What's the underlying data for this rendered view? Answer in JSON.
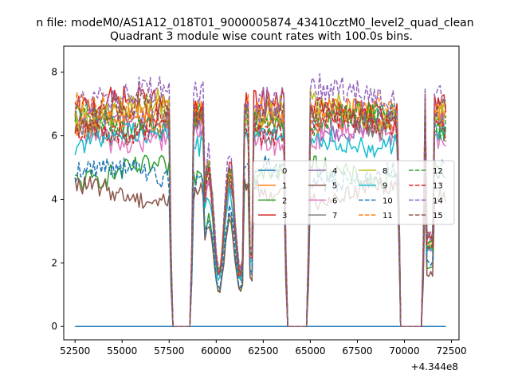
{
  "chart_data": {
    "type": "line",
    "suptitle": "n file: modeM0/AS1A12_018T01_9000005874_43410cztM0_level2_quad_clean",
    "title": "Quadrant 3 module wise count rates with 100.0s bins.",
    "xlabel": "",
    "ylabel": "",
    "x_offset_label": "+4.344e8",
    "xlim": [
      51900,
      72900
    ],
    "ylim": [
      -0.42,
      8.82
    ],
    "x_ticks": [
      52500,
      55000,
      57500,
      60000,
      62500,
      65000,
      67500,
      70000,
      72500
    ],
    "x_tick_labels": [
      "52500",
      "55000",
      "57500",
      "60000",
      "62500",
      "65000",
      "67500",
      "70000",
      "72500"
    ],
    "y_ticks": [
      0,
      2,
      4,
      6,
      8
    ],
    "y_tick_labels": [
      "0",
      "2",
      "4",
      "6",
      "8"
    ],
    "grid": false,
    "legend_position": "center-right",
    "legend_columns": 4,
    "bin_size_s": 100,
    "x_start": 52500,
    "x_end": 72200,
    "gaps": [
      [
        57650,
        58650
      ],
      [
        63750,
        64850
      ],
      [
        69800,
        70950
      ]
    ],
    "series": [
      {
        "name": "0",
        "color": "#1f77b4",
        "style": "solid",
        "level": 0.0,
        "amp": 0.0
      },
      {
        "name": "1",
        "color": "#ff7f0e",
        "style": "solid",
        "level": 6.6,
        "amp": 0.45
      },
      {
        "name": "2",
        "color": "#2ca02c",
        "style": "solid",
        "level": 4.8,
        "amp": 0.35
      },
      {
        "name": "3",
        "color": "#d62728",
        "style": "solid",
        "level": 6.9,
        "amp": 0.45
      },
      {
        "name": "4",
        "color": "#9467bd",
        "style": "solid",
        "level": 6.4,
        "amp": 0.4
      },
      {
        "name": "5",
        "color": "#8c564b",
        "style": "solid",
        "level": 4.2,
        "amp": 0.3
      },
      {
        "name": "6",
        "color": "#e377c2",
        "style": "solid",
        "level": 6.0,
        "amp": 0.4
      },
      {
        "name": "7",
        "color": "#7f7f7f",
        "style": "solid",
        "level": 6.3,
        "amp": 0.4
      },
      {
        "name": "8",
        "color": "#bcbd22",
        "style": "solid",
        "level": 6.8,
        "amp": 0.45
      },
      {
        "name": "9",
        "color": "#17becf",
        "style": "solid",
        "level": 5.9,
        "amp": 0.35
      },
      {
        "name": "10",
        "color": "#1f77b4",
        "style": "dashed",
        "level": 4.8,
        "amp": 0.35
      },
      {
        "name": "11",
        "color": "#ff7f0e",
        "style": "dashed",
        "level": 6.7,
        "amp": 0.45
      },
      {
        "name": "12",
        "color": "#2ca02c",
        "style": "dashed",
        "level": 6.5,
        "amp": 0.4
      },
      {
        "name": "13",
        "color": "#d62728",
        "style": "dashed",
        "level": 6.3,
        "amp": 0.4
      },
      {
        "name": "14",
        "color": "#9467bd",
        "style": "dashed",
        "level": 7.3,
        "amp": 0.45
      },
      {
        "name": "15",
        "color": "#8c564b",
        "style": "dashed",
        "level": 6.7,
        "amp": 0.45
      }
    ]
  }
}
